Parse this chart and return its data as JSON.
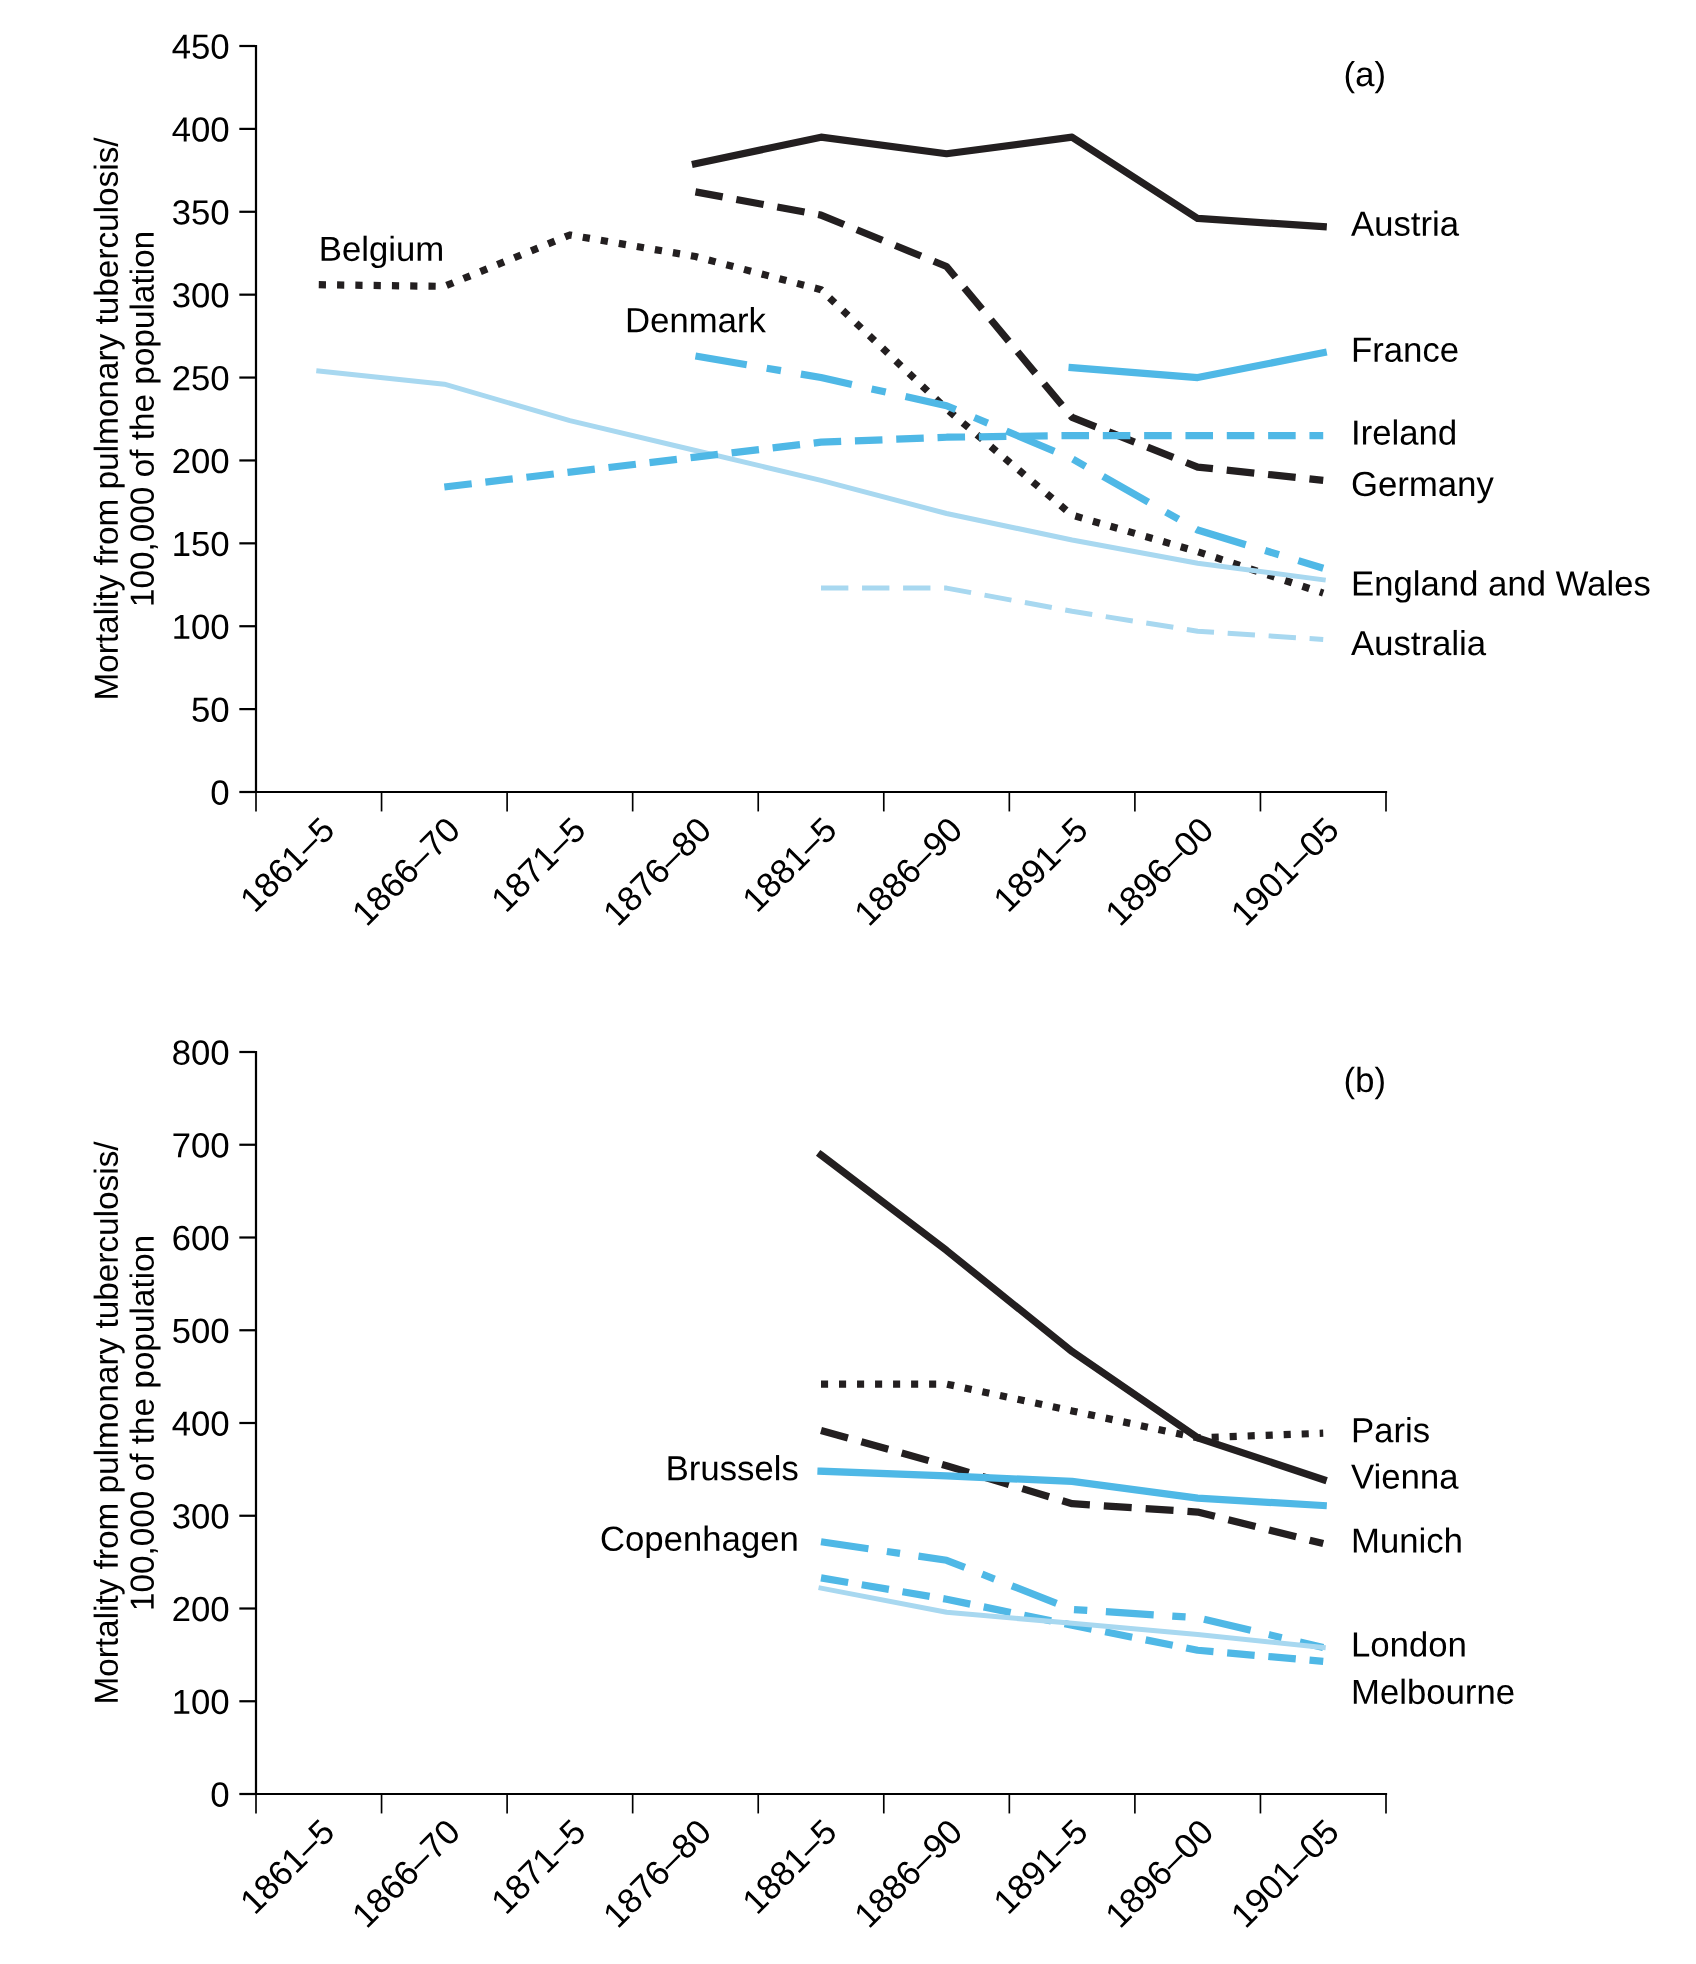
{
  "chart_data": [
    {
      "type": "line",
      "ylabel": "Mortality from pulmonary tuberculosis/\n100,000 of the population",
      "categories": [
        "1861–5",
        "1866–70",
        "1871–5",
        "1876–80",
        "1881–5",
        "1886–90",
        "1891–5",
        "1896–00",
        "1901–05"
      ],
      "ylim": [
        0,
        450
      ],
      "yticks": [
        0,
        50,
        100,
        150,
        200,
        250,
        300,
        350,
        400,
        450
      ],
      "grid": false,
      "series": [
        {
          "color": "#231f20",
          "line_style": "solid",
          "values": [
            null,
            null,
            null,
            379,
            395,
            385,
            395,
            346,
            341
          ]
        },
        {
          "color": "#231f20",
          "line_style": "dashed",
          "values": [
            null,
            null,
            null,
            362,
            348,
            317,
            226,
            196,
            188
          ]
        },
        {
          "color": "#231f20",
          "line_style": "dotted",
          "values": [
            306,
            305,
            336,
            323,
            303,
            231,
            167,
            145,
            120
          ]
        },
        {
          "color": "#4fb8e6",
          "line_style": "dashdot",
          "values": [
            null,
            null,
            null,
            263,
            250,
            233,
            201,
            158,
            135
          ]
        },
        {
          "color": "#a8d8f0",
          "line_style": "solid",
          "values": [
            254,
            246,
            224,
            206,
            188,
            168,
            152,
            138,
            128
          ]
        },
        {
          "color": "#4fb8e6",
          "line_style": "dashed",
          "values": [
            null,
            184,
            193,
            202,
            211,
            214,
            215,
            215,
            215
          ]
        },
        {
          "color": "#4fb8e6",
          "line_style": "solid",
          "values": [
            null,
            null,
            null,
            null,
            null,
            null,
            256,
            250,
            265
          ]
        },
        {
          "color": "#a8d8f0",
          "line_style": "dashed",
          "values": [
            null,
            null,
            null,
            null,
            123,
            123,
            109,
            97,
            92
          ]
        }
      ],
      "annotations": [
        "(a)",
        {
          "text": "Austria",
          "x": "1901–05",
          "y": 341
        },
        {
          "text": "France",
          "x": "1901–05",
          "y": 265
        },
        {
          "text": "Ireland",
          "x": "1901–05",
          "y": 215
        },
        {
          "text": "Germany",
          "x": "1901–05",
          "y": 184
        },
        {
          "text": "England and Wales",
          "x": "1901–05",
          "y": 124
        },
        {
          "text": "Australia",
          "x": "1901–05",
          "y": 88
        },
        {
          "text": "Belgium",
          "x": "1861–5",
          "y": 306
        },
        {
          "text": "Denmark",
          "x": "1876–80",
          "y": 263
        }
      ]
    },
    {
      "type": "line",
      "ylabel": "Mortality from pulmonary tuberculosis/\n100,000 of the population",
      "categories": [
        "1861–5",
        "1866–70",
        "1871–5",
        "1876–80",
        "1881–5",
        "1886–90",
        "1891–5",
        "1896–00",
        "1901–05"
      ],
      "ylim": [
        0,
        800
      ],
      "yticks": [
        0,
        100,
        200,
        300,
        400,
        500,
        600,
        700,
        800
      ],
      "grid": false,
      "series": [
        {
          "color": "#231f20",
          "line_style": "solid",
          "values": [
            null,
            null,
            null,
            null,
            689,
            586,
            477,
            384,
            339
          ]
        },
        {
          "color": "#231f20",
          "line_style": "dotted",
          "values": [
            null,
            null,
            null,
            null,
            442,
            442,
            413,
            384,
            389
          ]
        },
        {
          "color": "#231f20",
          "line_style": "dashed",
          "values": [
            null,
            null,
            null,
            null,
            392,
            354,
            313,
            304,
            270
          ]
        },
        {
          "color": "#4fb8e6",
          "line_style": "solid",
          "values": [
            null,
            null,
            null,
            null,
            348,
            343,
            337,
            319,
            311
          ]
        },
        {
          "color": "#4fb8e6",
          "line_style": "dashdot",
          "values": [
            null,
            null,
            null,
            null,
            272,
            252,
            199,
            190,
            158
          ]
        },
        {
          "color": "#4fb8e6",
          "line_style": "dashed",
          "values": [
            null,
            null,
            null,
            null,
            233,
            210,
            182,
            155,
            143
          ]
        },
        {
          "color": "#a8d8f0",
          "line_style": "solid",
          "values": [
            null,
            null,
            null,
            null,
            222,
            196,
            184,
            172,
            158
          ]
        }
      ],
      "annotations": [
        "(b)",
        {
          "text": "Paris",
          "x": "1901–05",
          "y": 389
        },
        {
          "text": "Vienna",
          "x": "1901–05",
          "y": 339
        },
        {
          "text": "Munich",
          "x": "1901–05",
          "y": 270
        },
        {
          "text": "London",
          "x": "1901–05",
          "y": 158
        },
        {
          "text": "Melbourne",
          "x": "1901–05",
          "y": 143
        },
        {
          "text": "Brussels",
          "x": "1881–5",
          "y": 348
        },
        {
          "text": "Copenhagen",
          "x": "1881–5",
          "y": 272
        }
      ]
    }
  ]
}
